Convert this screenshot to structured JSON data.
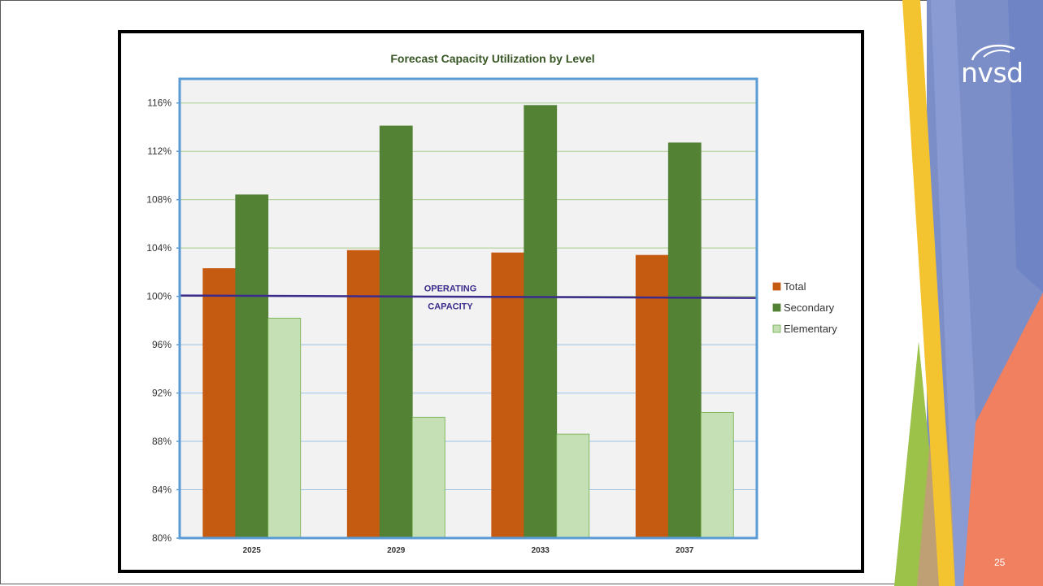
{
  "slide": {
    "logo_text": "nvsd",
    "page_number": "25"
  },
  "colors": {
    "total": "#C55A11",
    "secondary": "#548235",
    "elementary": "#C5E0B4",
    "operating_line": "#3A2B8C",
    "title": "#375623",
    "plot_border": "#5B9BD5"
  },
  "chart_data": {
    "type": "bar",
    "title": "Forecast Capacity Utilization by Level",
    "xlabel": "",
    "ylabel": "",
    "categories": [
      "2025",
      "2029",
      "2033",
      "2037"
    ],
    "series": [
      {
        "name": "Total",
        "values": [
          102.3,
          103.8,
          103.6,
          103.4
        ]
      },
      {
        "name": "Secondary",
        "values": [
          108.4,
          114.1,
          115.8,
          112.7
        ]
      },
      {
        "name": "Elementary",
        "values": [
          98.2,
          90.0,
          88.6,
          90.4
        ]
      }
    ],
    "ylim": [
      80,
      118
    ],
    "yticks": [
      "80%",
      "84%",
      "88%",
      "92%",
      "96%",
      "100%",
      "104%",
      "108%",
      "112%",
      "116%"
    ],
    "ytick_values": [
      80,
      84,
      88,
      92,
      96,
      100,
      104,
      108,
      112,
      116
    ],
    "reference_line": {
      "value": 100,
      "label_line1": "OPERATING",
      "label_line2": "CAPACITY"
    },
    "legend": "right",
    "grid": true
  }
}
